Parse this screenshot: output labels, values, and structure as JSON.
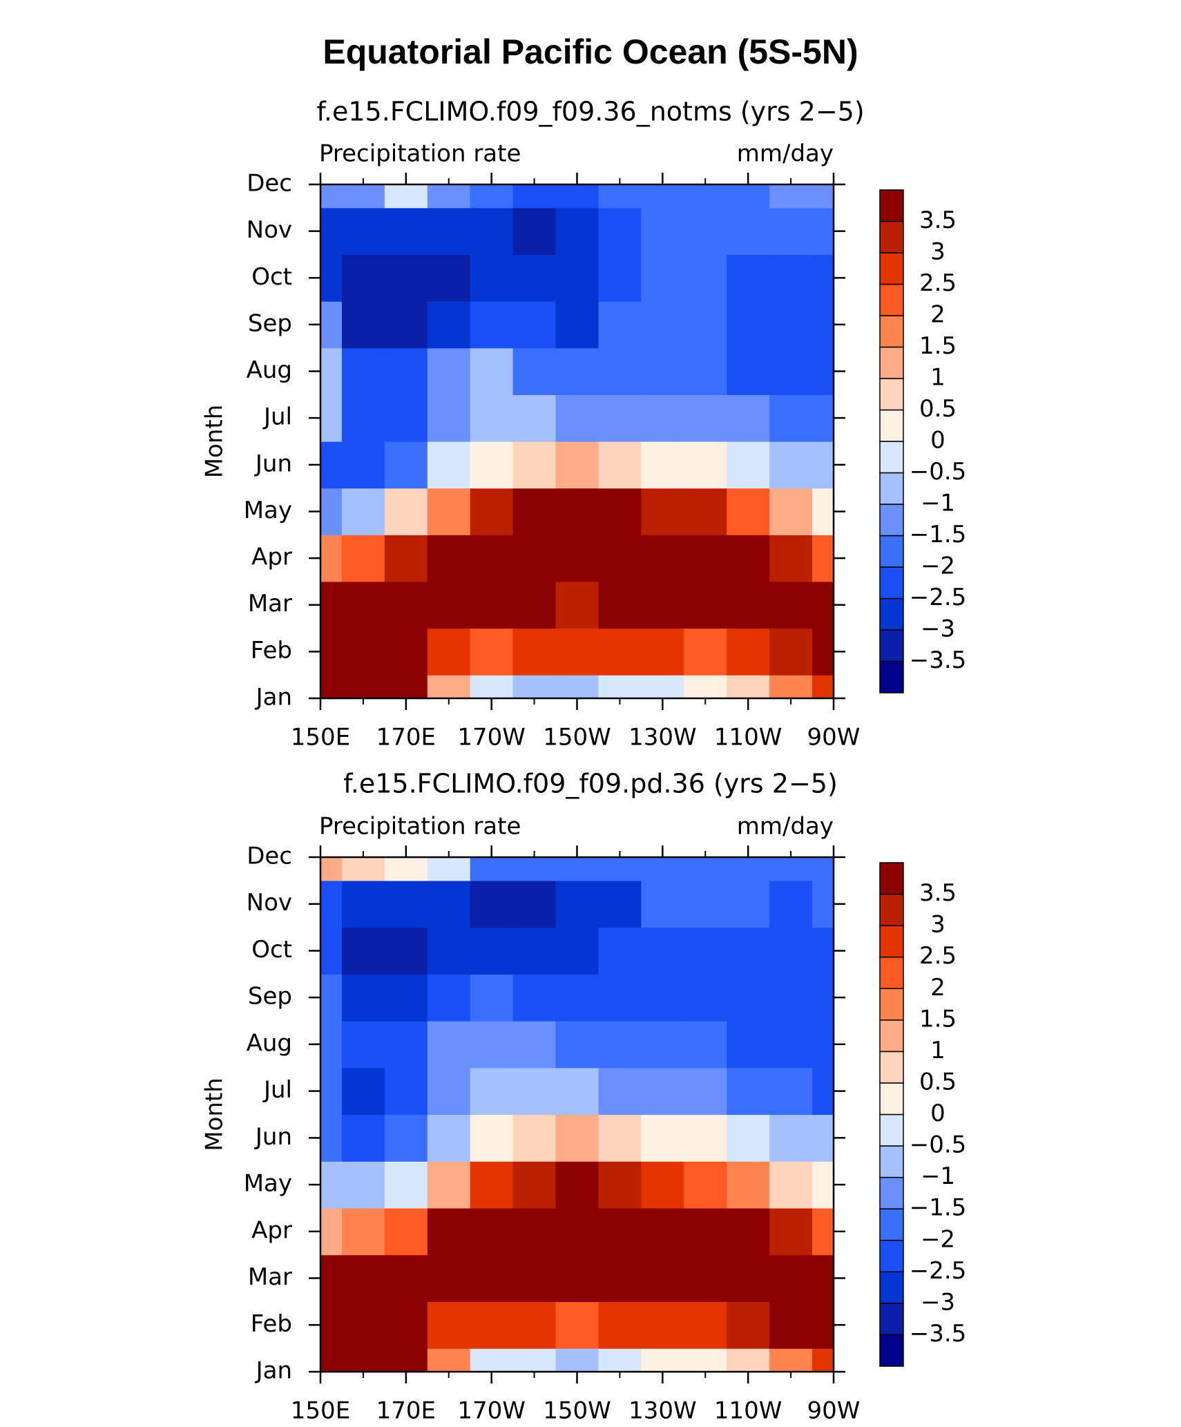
{
  "title": "Equatorial Pacific Ocean (5S-5N)",
  "chart_data": [
    {
      "type": "heatmap",
      "title": "f.e15.FCLIMO.f09_f09.36_notms (yrs 2−5)",
      "left_label": "Precipitation rate",
      "right_label": "mm/day",
      "y_label": "Month",
      "x": [
        150,
        160,
        170,
        180,
        190,
        200,
        210,
        220,
        230,
        240,
        250,
        260,
        270
      ],
      "xlim": [
        150,
        270
      ],
      "xticks": [
        {
          "value": 150,
          "label": "150E"
        },
        {
          "value": 170,
          "label": "170E"
        },
        {
          "value": 190,
          "label": "170W"
        },
        {
          "value": 210,
          "label": "150W"
        },
        {
          "value": 230,
          "label": "130W"
        },
        {
          "value": 250,
          "label": "110W"
        },
        {
          "value": 270,
          "label": "90W"
        }
      ],
      "xminorticks": [
        160,
        180,
        200,
        220,
        240,
        260
      ],
      "categories": [
        "Jan",
        "Feb",
        "Mar",
        "Apr",
        "May",
        "Jun",
        "Jul",
        "Aug",
        "Sep",
        "Oct",
        "Nov",
        "Dec"
      ],
      "values": [
        [
          4,
          4,
          4,
          1,
          -0.3,
          -0.7,
          -0.7,
          -0.3,
          -0.3,
          0.3,
          0.8,
          1.5,
          2.5
        ],
        [
          4,
          4,
          4,
          2.5,
          2,
          2.8,
          2.7,
          2.8,
          2.5,
          2.2,
          2.5,
          3,
          3.8
        ],
        [
          4,
          4,
          3.8,
          3.8,
          4,
          4,
          3.3,
          3.6,
          3.8,
          4,
          4,
          4,
          4
        ],
        [
          1.5,
          2.2,
          3,
          3.6,
          4,
          4,
          4,
          4,
          4,
          4,
          3.8,
          3.2,
          2.2
        ],
        [
          -1.2,
          -0.8,
          0.5,
          1.8,
          3.2,
          3.8,
          4,
          3.8,
          3.4,
          3,
          2.2,
          1.2,
          0.2
        ],
        [
          -2.5,
          -2.5,
          -2,
          -0.5,
          0.3,
          0.8,
          1,
          0.8,
          0.4,
          0,
          -0.3,
          -0.6,
          -1
        ],
        [
          -1,
          -2.5,
          -2.2,
          -1.5,
          -0.8,
          -1,
          -1.2,
          -1.5,
          -1.5,
          -1.3,
          -1.5,
          -1.8,
          -2
        ],
        [
          -0.8,
          -2.5,
          -2.5,
          -1.2,
          -0.7,
          -1.7,
          -2,
          -2,
          -1.7,
          -1.7,
          -2.2,
          -2.2,
          -2.2
        ],
        [
          -1.5,
          -3.2,
          -3.1,
          -2.7,
          -2.5,
          -2.5,
          -2.6,
          -2,
          -1.7,
          -1.8,
          -2.2,
          -2.3,
          -2.2
        ],
        [
          -2.6,
          -3.3,
          -3.2,
          -3.1,
          -2.6,
          -2.7,
          -2.7,
          -2.3,
          -1.7,
          -1.7,
          -2.3,
          -2.3,
          -2.2
        ],
        [
          -2.6,
          -3,
          -3,
          -3,
          -2.8,
          -3.1,
          -2.8,
          -2.5,
          -1.8,
          -1.7,
          -1.8,
          -2,
          -1.9
        ],
        [
          -1.2,
          -1.5,
          -0.5,
          -1.3,
          -2,
          -2.2,
          -2.2,
          -2,
          -1.7,
          -1.7,
          -1.7,
          -1.2,
          -1.5
        ]
      ],
      "levels": [
        {
          "value": -3.5,
          "label": "−3.5"
        },
        {
          "value": -3,
          "label": "−3"
        },
        {
          "value": -2.5,
          "label": "−2.5"
        },
        {
          "value": -2,
          "label": "−2"
        },
        {
          "value": -1.5,
          "label": "−1.5"
        },
        {
          "value": -1,
          "label": "−1"
        },
        {
          "value": -0.5,
          "label": "−0.5"
        },
        0,
        0.5,
        1,
        1.5,
        2,
        2.5,
        3,
        3.5
      ],
      "colors": [
        "#00008b",
        "#0b20a8",
        "#0535d2",
        "#1a4ff5",
        "#3a6ffd",
        "#6990fd",
        "#a5c0fe",
        "#d6e7fe",
        "#fff0e4",
        "#ffd3bc",
        "#ffab88",
        "#ff8450",
        "#ff5a23",
        "#e43500",
        "#bb2000",
        "#8b0000"
      ]
    },
    {
      "type": "heatmap",
      "title": "f.e15.FCLIMO.f09_f09.pd.36 (yrs 2−5)",
      "left_label": "Precipitation rate",
      "right_label": "mm/day",
      "y_label": "Month",
      "x": [
        150,
        160,
        170,
        180,
        190,
        200,
        210,
        220,
        230,
        240,
        250,
        260,
        270
      ],
      "xlim": [
        150,
        270
      ],
      "xticks": [
        {
          "value": 150,
          "label": "150E"
        },
        {
          "value": 170,
          "label": "170E"
        },
        {
          "value": 190,
          "label": "170W"
        },
        {
          "value": 210,
          "label": "150W"
        },
        {
          "value": 230,
          "label": "130W"
        },
        {
          "value": 250,
          "label": "110W"
        },
        {
          "value": 270,
          "label": "90W"
        }
      ],
      "xminorticks": [
        160,
        180,
        200,
        220,
        240,
        260
      ],
      "categories": [
        "Jan",
        "Feb",
        "Mar",
        "Apr",
        "May",
        "Jun",
        "Jul",
        "Aug",
        "Sep",
        "Oct",
        "Nov",
        "Dec"
      ],
      "values": [
        [
          4,
          4,
          4,
          1.5,
          -0.2,
          -0.5,
          -0.7,
          -0.3,
          0,
          0.2,
          0.8,
          1.8,
          2.5
        ],
        [
          4,
          4,
          4,
          2.8,
          2.5,
          2.6,
          2.4,
          2.5,
          2.5,
          2.6,
          3,
          3.5,
          3.8
        ],
        [
          3.8,
          4,
          3.8,
          3.5,
          4,
          4,
          3.5,
          3.5,
          3.7,
          4,
          4,
          4,
          4
        ],
        [
          1,
          1.5,
          2,
          3.8,
          4,
          4,
          4,
          4,
          4,
          3.8,
          3.5,
          3,
          2.2
        ],
        [
          -1,
          -0.7,
          -0.3,
          1,
          2.5,
          3.3,
          3.5,
          3.2,
          2.8,
          2.3,
          1.5,
          0.8,
          0.2
        ],
        [
          -2,
          -2.5,
          -2,
          -1,
          0.2,
          0.8,
          1,
          0.8,
          0.4,
          0,
          -0.3,
          -0.7,
          -1
        ],
        [
          -1.8,
          -3,
          -2.4,
          -1.5,
          -1,
          -0.8,
          -1,
          -1.3,
          -1.3,
          -1.5,
          -1.8,
          -2,
          -2.2
        ],
        [
          -1.8,
          -2.5,
          -2.5,
          -1.5,
          -1.2,
          -1.5,
          -1.8,
          -2,
          -2,
          -2,
          -2.2,
          -2.3,
          -2.3
        ],
        [
          -1.8,
          -2.8,
          -2.7,
          -2.5,
          -2,
          -2.2,
          -2.3,
          -2.2,
          -2.2,
          -2.2,
          -2.3,
          -2.4,
          -2.3
        ],
        [
          -2.5,
          -3.2,
          -3.3,
          -3,
          -2.8,
          -2.8,
          -2.6,
          -2.3,
          -2.2,
          -2.2,
          -2.3,
          -2.4,
          -2.3
        ],
        [
          -2.3,
          -2.7,
          -2.8,
          -3,
          -3.2,
          -3.2,
          -2.8,
          -2.6,
          -1.8,
          -1.8,
          -2,
          -2.2,
          -2
        ],
        [
          1,
          0.5,
          0.2,
          -0.5,
          -1.7,
          -2,
          -2,
          -1.8,
          -1.7,
          -1.6,
          -1.6,
          -1.6,
          -1.6
        ]
      ],
      "levels": [
        {
          "value": -3.5,
          "label": "−3.5"
        },
        {
          "value": -3,
          "label": "−3"
        },
        {
          "value": -2.5,
          "label": "−2.5"
        },
        {
          "value": -2,
          "label": "−2"
        },
        {
          "value": -1.5,
          "label": "−1.5"
        },
        {
          "value": -1,
          "label": "−1"
        },
        {
          "value": -0.5,
          "label": "−0.5"
        },
        0,
        0.5,
        1,
        1.5,
        2,
        2.5,
        3,
        3.5
      ],
      "colors": [
        "#00008b",
        "#0b20a8",
        "#0535d2",
        "#1a4ff5",
        "#3a6ffd",
        "#6990fd",
        "#a5c0fe",
        "#d6e7fe",
        "#fff0e4",
        "#ffd3bc",
        "#ffab88",
        "#ff8450",
        "#ff5a23",
        "#e43500",
        "#bb2000",
        "#8b0000"
      ]
    }
  ]
}
